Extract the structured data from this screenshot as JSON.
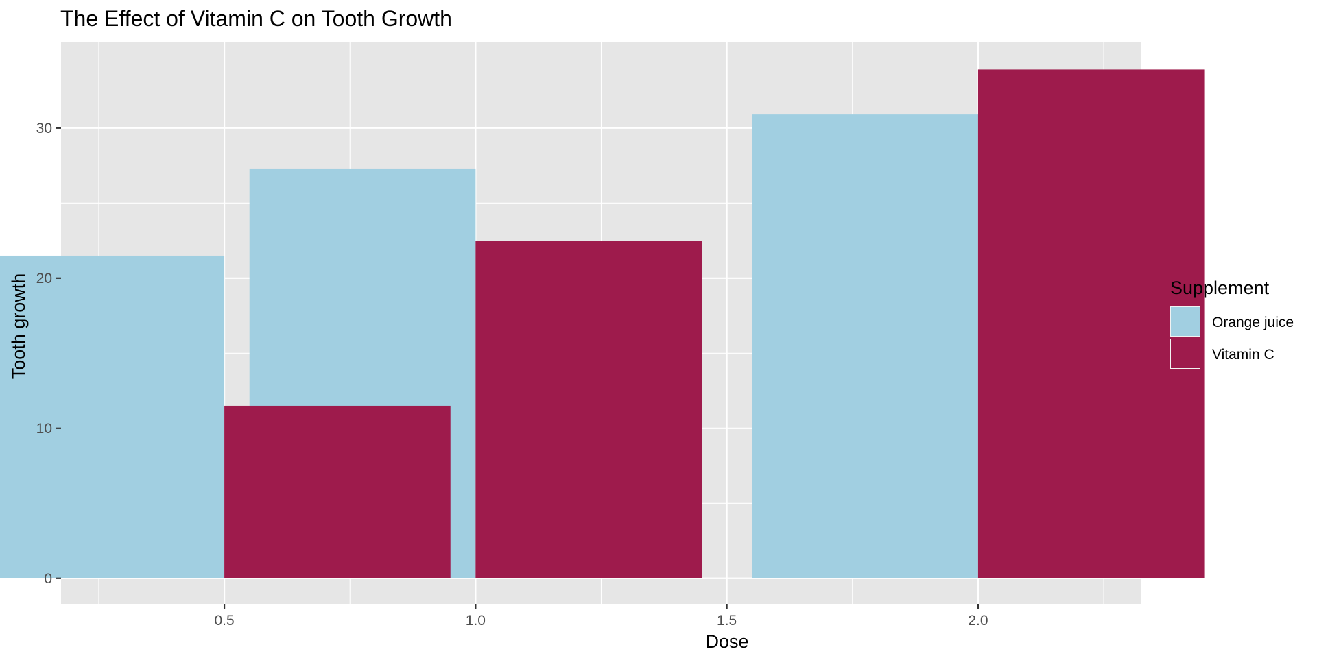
{
  "chart_data": {
    "type": "bar",
    "title": "The Effect of Vitamin C on Tooth Growth",
    "xlabel": "Dose",
    "ylabel": "Tooth growth",
    "x": [
      0.5,
      1.0,
      2.0
    ],
    "x_ticks": [
      0.5,
      1.0,
      1.5,
      2.0
    ],
    "x_tick_labels": [
      "0.5",
      "1.0",
      "1.5",
      "2.0"
    ],
    "xlim": [
      0.175,
      2.325
    ],
    "y_ticks": [
      0,
      10,
      20,
      30
    ],
    "y_tick_labels": [
      "0",
      "10",
      "20",
      "30"
    ],
    "ylim": [
      -1.7,
      35.7
    ],
    "bar_width": 0.45,
    "grid": true,
    "background_color": "#e6e6e6",
    "grid_color": "#ffffff",
    "legend": {
      "title": "Supplement",
      "placement": "right"
    },
    "series": [
      {
        "name": "Orange juice",
        "color": "#a1cfe1",
        "values": [
          21.5,
          27.3,
          30.9
        ]
      },
      {
        "name": "Vitamin C",
        "color": "#9e1b4c",
        "values": [
          11.5,
          22.5,
          33.9
        ]
      }
    ]
  }
}
